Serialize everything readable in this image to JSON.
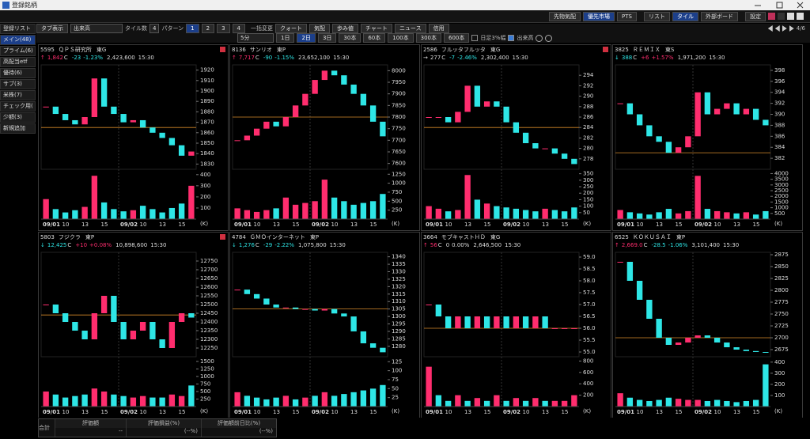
{
  "window_title": "登録銘柄",
  "toolbar": {
    "right_buttons": [
      "先物気配",
      "優先市場",
      "PTS",
      "リスト",
      "タイル",
      "外部ボード",
      "設定"
    ]
  },
  "controls": {
    "tab_view": "タブ表示",
    "indicator": "出来高",
    "tile_count_label": "タイル数",
    "tile_count": "4",
    "pattern_label": "パターン",
    "patterns": [
      "1",
      "2",
      "3",
      "4"
    ],
    "bulk_label": "一括変更",
    "bulk_buttons": [
      "クォート",
      "気配",
      "歩み値",
      "チャート",
      "ニュース",
      "信用"
    ],
    "page": "4/6"
  },
  "chart_controls": {
    "interval": "5分",
    "periods": [
      "1日",
      "2日",
      "3日",
      "30本",
      "60本",
      "100本",
      "300本",
      "600本"
    ],
    "daily_band": "日足3%幅",
    "volume_toggle": "出来高"
  },
  "sidebar": {
    "items": [
      "登録リスト",
      "メイン(48)",
      "プライム(6)",
      "高配当etf",
      "優待(6)",
      "サブ(3)",
      "米株(7)",
      "チェック用(",
      "少額(3)",
      "新規追加"
    ]
  },
  "x_labels": [
    "09/01",
    "10",
    "13",
    "15",
    "09/02",
    "10",
    "13",
    "15"
  ],
  "vol_unit": "(K)",
  "tiles": [
    {
      "code": "5595",
      "name": "ＱＰＳ研究所",
      "market": "東G",
      "arrow": "↑",
      "price": "1,842",
      "price_flag": "C",
      "change": "-23",
      "change_pct": "-1.23%",
      "volume": "2,423,600",
      "time": "15:30",
      "alert": true,
      "closes": [
        1885,
        1878,
        1872,
        1868,
        1875,
        1912,
        1885,
        1878,
        1870,
        1872,
        1865,
        1860,
        1855,
        1848,
        1838,
        1842
      ],
      "ylim": [
        1825,
        1925
      ],
      "yticks": [
        1830,
        1840,
        1850,
        1860,
        1870,
        1880,
        1890,
        1900,
        1910,
        1920
      ],
      "ref_line": 1865,
      "volumes": [
        180,
        90,
        60,
        80,
        110,
        390,
        150,
        90,
        70,
        80,
        120,
        90,
        60,
        100,
        140,
        300
      ],
      "vol_lim": [
        0,
        420
      ],
      "vol_ticks": [
        100,
        200,
        300,
        400
      ]
    },
    {
      "code": "8136",
      "name": "サンリオ",
      "market": "東P",
      "arrow": "↑",
      "price": "7,717",
      "price_flag": "C",
      "change": "-90",
      "change_pct": "-1.15%",
      "volume": "23,652,100",
      "time": "15:30",
      "alert": false,
      "closes": [
        7700,
        7720,
        7750,
        7780,
        7760,
        7800,
        7850,
        7900,
        7960,
        8000,
        7980,
        7940,
        7900,
        7850,
        7780,
        7717
      ],
      "ylim": [
        7575,
        8025
      ],
      "yticks": [
        7600,
        7650,
        7700,
        7750,
        7800,
        7850,
        7900,
        7950,
        8000
      ],
      "ref_line": 7800,
      "volumes": [
        300,
        250,
        200,
        250,
        300,
        600,
        400,
        450,
        500,
        1100,
        600,
        500,
        400,
        450,
        500,
        700
      ],
      "vol_lim": [
        0,
        1300
      ],
      "vol_ticks": [
        250,
        500,
        750,
        1000,
        1250
      ]
    },
    {
      "code": "2586",
      "name": "フルッタフルッタ",
      "market": "東G",
      "arrow": "→",
      "price": "277",
      "price_flag": "C",
      "change": "-7",
      "change_pct": "-2.46%",
      "volume": "2,302,400",
      "time": "15:30",
      "alert": true,
      "closes": [
        286,
        286,
        285,
        287,
        292,
        288,
        289,
        288,
        285,
        283,
        281,
        280,
        280,
        279,
        278,
        277
      ],
      "ylim": [
        276,
        296
      ],
      "yticks": [
        278,
        280,
        282,
        284,
        286,
        288,
        290,
        292,
        294
      ],
      "ref_line": 284,
      "volumes": [
        100,
        80,
        60,
        70,
        340,
        150,
        120,
        100,
        90,
        80,
        70,
        60,
        80,
        70,
        60,
        90
      ],
      "vol_lim": [
        0,
        360
      ],
      "vol_ticks": [
        50,
        100,
        150,
        200,
        250,
        300,
        350
      ]
    },
    {
      "code": "3825",
      "name": "ＲＥＭＩＸ",
      "market": "東S",
      "arrow": "↓",
      "price": "388",
      "price_flag": "C",
      "change": "+6",
      "change_pct": "+1.57%",
      "volume": "1,971,200",
      "time": "15:30",
      "alert": false,
      "closes": [
        392,
        390,
        388,
        386,
        385,
        383,
        384,
        386,
        394,
        390,
        391,
        392,
        390,
        391,
        389,
        388
      ],
      "ylim": [
        380,
        399
      ],
      "yticks": [
        382,
        384,
        386,
        388,
        390,
        392,
        394,
        396,
        398
      ],
      "ref_line": 383,
      "volumes": [
        800,
        600,
        500,
        400,
        600,
        900,
        500,
        700,
        3800,
        900,
        700,
        600,
        500,
        600,
        400,
        700
      ],
      "vol_lim": [
        0,
        4100
      ],
      "vol_ticks": [
        500,
        1000,
        1500,
        2000,
        2500,
        3000,
        3500,
        4000
      ]
    },
    {
      "code": "5803",
      "name": "フジクラ",
      "market": "東P",
      "arrow": "↓",
      "price": "12,425",
      "price_flag": "C",
      "change": "+10",
      "change_pct": "+0.08%",
      "volume": "10,898,600",
      "time": "15:30",
      "alert": true,
      "closes": [
        12500,
        12450,
        12400,
        12350,
        12300,
        12450,
        12550,
        12400,
        12300,
        12350,
        12400,
        12300,
        12250,
        12400,
        12450,
        12425
      ],
      "ylim": [
        12200,
        12800
      ],
      "yticks": [
        12250,
        12300,
        12350,
        12400,
        12450,
        12500,
        12550,
        12600,
        12650,
        12700,
        12750
      ],
      "ref_line": 12440,
      "volumes": [
        500,
        400,
        300,
        350,
        400,
        600,
        500,
        400,
        350,
        300,
        350,
        300,
        300,
        400,
        350,
        700
      ],
      "vol_lim": [
        0,
        1550
      ],
      "vol_ticks": [
        250,
        500,
        750,
        1000,
        1250,
        1500
      ]
    },
    {
      "code": "4784",
      "name": "ＧＭＯインターネット",
      "market": "東P",
      "arrow": "↓",
      "price": "1,276",
      "price_flag": "C",
      "change": "-29",
      "change_pct": "-2.22%",
      "volume": "1,075,800",
      "time": "15:30",
      "alert": false,
      "closes": [
        1318,
        1315,
        1312,
        1308,
        1306,
        1306,
        1305,
        1305,
        1304,
        1305,
        1302,
        1300,
        1290,
        1282,
        1279,
        1276
      ],
      "ylim": [
        1273,
        1343
      ],
      "yticks": [
        1280,
        1285,
        1290,
        1295,
        1300,
        1305,
        1310,
        1315,
        1320,
        1325,
        1330,
        1335,
        1340
      ],
      "ref_line": 1305,
      "volumes": [
        40,
        30,
        25,
        20,
        25,
        30,
        20,
        25,
        30,
        40,
        30,
        35,
        40,
        45,
        50,
        60
      ],
      "vol_lim": [
        0,
        130
      ],
      "vol_ticks": [
        25,
        50,
        75,
        100,
        125
      ]
    },
    {
      "code": "3664",
      "name": "モブキャストＨＤ",
      "market": "東G",
      "arrow": "↑",
      "price": "56",
      "price_flag": "C",
      "change": "0",
      "change_pct": "0.00%",
      "volume": "2,646,500",
      "time": "15:30",
      "alert": false,
      "closes": [
        57,
        56.5,
        56,
        56.5,
        56,
        56.5,
        56,
        56.5,
        56,
        56.5,
        56,
        56.5,
        56,
        56,
        56,
        56
      ],
      "ylim": [
        54.8,
        59.2
      ],
      "yticks": [
        {
          "value": 55,
          "label": "55.0"
        },
        55.5,
        {
          "value": 56,
          "label": "56.0"
        },
        56.5,
        {
          "value": 57,
          "label": "57.0"
        },
        57.5,
        {
          "value": 58,
          "label": "58.0"
        },
        58.5,
        {
          "value": 59,
          "label": "59.0"
        }
      ],
      "ref_line": 56,
      "volumes": [
        700,
        200,
        100,
        200,
        100,
        150,
        100,
        200,
        100,
        150,
        100,
        150,
        100,
        100,
        100,
        200
      ],
      "vol_lim": [
        0,
        820
      ],
      "vol_ticks": [
        200,
        400,
        600,
        800
      ]
    },
    {
      "code": "6525",
      "name": "ＫＯＫＵＳＡＩ",
      "market": "東P",
      "arrow": "↑",
      "price": "2,669.0",
      "price_flag": "C",
      "change": "-28.5",
      "change_pct": "-1.06%",
      "volume": "3,101,400",
      "time": "15:30",
      "alert": false,
      "closes": [
        2860,
        2820,
        2780,
        2740,
        2700,
        2685,
        2690,
        2700,
        2705,
        2700,
        2690,
        2680,
        2675,
        2672,
        2670,
        2669
      ],
      "ylim": [
        2660,
        2880
      ],
      "yticks": [
        2675,
        2700,
        2725,
        2750,
        2775,
        2800,
        2825,
        2850,
        2875
      ],
      "ref_line": 2700,
      "volumes": [
        120,
        80,
        60,
        50,
        60,
        80,
        70,
        60,
        60,
        50,
        60,
        50,
        40,
        50,
        60,
        380
      ],
      "vol_lim": [
        0,
        420
      ],
      "vol_ticks": [
        100,
        200,
        300,
        400
      ]
    }
  ],
  "summary": {
    "label": "合計",
    "headers": [
      "評価額",
      "評価損益(%)",
      "評価額前日比(%)"
    ],
    "values": [
      "--",
      "(--%)",
      "(--%)"
    ]
  }
}
